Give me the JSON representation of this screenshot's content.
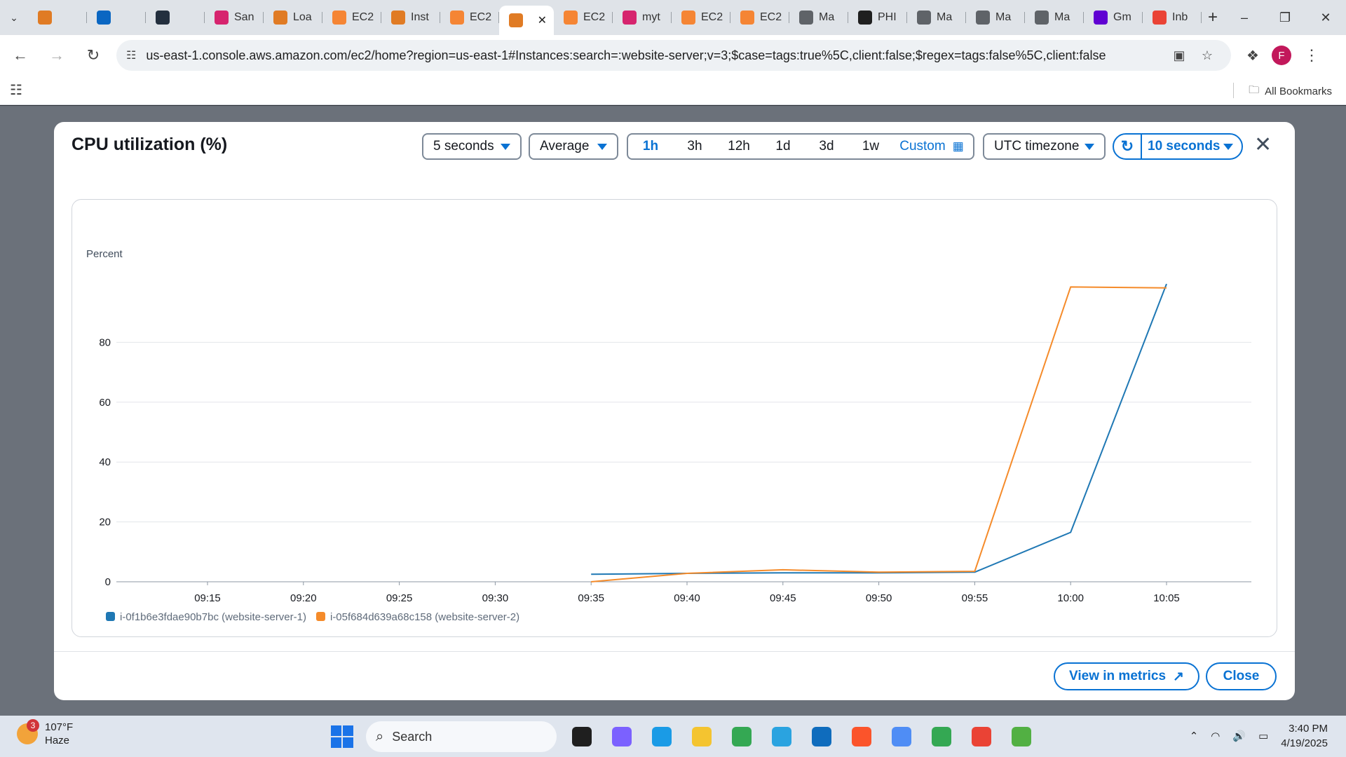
{
  "browser": {
    "tabs": [
      {
        "label": "",
        "icon": "aws-service-icon",
        "color": "#e07b24"
      },
      {
        "label": "",
        "icon": "linkedin-icon",
        "color": "#0a66c2"
      },
      {
        "label": "",
        "icon": "aws-icon",
        "color": "#232f3e"
      },
      {
        "label": "San",
        "icon": "app-icon",
        "color": "#d6246e"
      },
      {
        "label": "Loa",
        "icon": "aws-service-icon",
        "color": "#e07b24"
      },
      {
        "label": "EC2",
        "icon": "ec2-icon",
        "color": "#f58534"
      },
      {
        "label": "Inst",
        "icon": "aws-service-icon",
        "color": "#e07b24"
      },
      {
        "label": "EC2",
        "icon": "ec2-icon",
        "color": "#f58534"
      },
      {
        "label": "",
        "icon": "aws-service-icon",
        "color": "#e07b24",
        "active": true
      },
      {
        "label": "EC2",
        "icon": "ec2-icon",
        "color": "#f58534"
      },
      {
        "label": "myt",
        "icon": "app-icon",
        "color": "#d6246e"
      },
      {
        "label": "EC2",
        "icon": "ec2-icon",
        "color": "#f58534"
      },
      {
        "label": "EC2",
        "icon": "ec2-icon",
        "color": "#f58534"
      },
      {
        "label": "Ma",
        "icon": "globe-icon",
        "color": "#5f6368"
      },
      {
        "label": "PHI",
        "icon": "openai-icon",
        "color": "#1f1f1f"
      },
      {
        "label": "Ma",
        "icon": "globe-icon",
        "color": "#5f6368"
      },
      {
        "label": "Ma",
        "icon": "globe-icon",
        "color": "#5f6368"
      },
      {
        "label": "Ma",
        "icon": "globe-icon",
        "color": "#5f6368"
      },
      {
        "label": "Gm",
        "icon": "yahoo-icon",
        "color": "#6001d2"
      },
      {
        "label": "Inb",
        "icon": "gmail-icon",
        "color": "#ea4335"
      }
    ],
    "url": "us-east-1.console.aws.amazon.com/ec2/home?region=us-east-1#Instances:search=:website-server;v=3;$case=tags:true%5C,client:false;$regex=tags:false%5C,client:false",
    "profile_initial": "F",
    "all_bookmarks": "All Bookmarks"
  },
  "modal": {
    "title": "CPU utilization (%)",
    "period": "5 seconds",
    "statistic": "Average",
    "ranges": [
      "1h",
      "3h",
      "12h",
      "1d",
      "3d",
      "1w"
    ],
    "active_range": "1h",
    "custom_label": "Custom",
    "timezone": "UTC timezone",
    "refresh_interval": "10 seconds",
    "view_in_metrics": "View in metrics",
    "close": "Close"
  },
  "chart_data": {
    "type": "line",
    "ylabel": "Percent",
    "ylim": [
      0,
      100
    ],
    "yticks": [
      0,
      20,
      40,
      60,
      80
    ],
    "x": [
      "09:15",
      "09:20",
      "09:25",
      "09:30",
      "09:35",
      "09:40",
      "09:45",
      "09:50",
      "09:55",
      "10:00",
      "10:05"
    ],
    "grid": true,
    "legend": "bottom-left",
    "series": [
      {
        "name": "i-0f1b6e3fdae90b7bc (website-server-1)",
        "color": "#1f78b4",
        "points": [
          [
            "09:35",
            2.5
          ],
          [
            "09:40",
            2.8
          ],
          [
            "09:45",
            3.0
          ],
          [
            "09:50",
            3.0
          ],
          [
            "09:55",
            3.2
          ],
          [
            "10:00",
            16.5
          ],
          [
            "10:05",
            99.5
          ]
        ]
      },
      {
        "name": "i-05f684d639a68c158 (website-server-2)",
        "color": "#f58b2a",
        "points": [
          [
            "09:35",
            0.0
          ],
          [
            "09:40",
            2.8
          ],
          [
            "09:45",
            4.0
          ],
          [
            "09:50",
            3.2
          ],
          [
            "09:55",
            3.5
          ],
          [
            "10:00",
            98.5
          ],
          [
            "10:05",
            98.2
          ]
        ]
      }
    ]
  },
  "taskbar": {
    "weather_temp": "107°F",
    "weather_desc": "Haze",
    "weather_badge": "3",
    "search_placeholder": "Search",
    "time": "3:40 PM",
    "date": "4/19/2025",
    "apps": [
      {
        "name": "task-view-app",
        "color": "#1f1f1f"
      },
      {
        "name": "copilot-app",
        "color": "#7b61ff"
      },
      {
        "name": "edge-app",
        "color": "#1a9be6"
      },
      {
        "name": "file-explorer-app",
        "color": "#f4c430"
      },
      {
        "name": "chrome-app",
        "color": "#34a853"
      },
      {
        "name": "telegram-app",
        "color": "#2aa3e0"
      },
      {
        "name": "outlook-app",
        "color": "#0f6cbd"
      },
      {
        "name": "brave-app",
        "color": "#fb542b"
      },
      {
        "name": "gemini-app",
        "color": "#4f8df5"
      },
      {
        "name": "chrome-profile-app",
        "color": "#34a853"
      },
      {
        "name": "chrome-profile-2-app",
        "color": "#ea4335"
      },
      {
        "name": "network-app",
        "color": "#52b043"
      }
    ]
  }
}
